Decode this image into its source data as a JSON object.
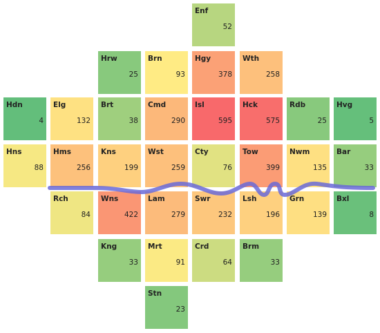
{
  "chart_data": {
    "type": "heatmap",
    "grid": "London borough tile grid",
    "color_scale": {
      "low": "#63be7b",
      "mid": "#ffeb84",
      "high": "#f8696b"
    },
    "river_color": "#6a6ad8",
    "tiles": [
      {
        "label": "Enf",
        "value": 52,
        "row": 0,
        "col": 4
      },
      {
        "label": "Hrw",
        "value": 25,
        "row": 1,
        "col": 2
      },
      {
        "label": "Brn",
        "value": 93,
        "row": 1,
        "col": 3
      },
      {
        "label": "Hgy",
        "value": 378,
        "row": 1,
        "col": 4
      },
      {
        "label": "Wth",
        "value": 258,
        "row": 1,
        "col": 5
      },
      {
        "label": "Hdn",
        "value": 4,
        "row": 2,
        "col": 0
      },
      {
        "label": "Elg",
        "value": 132,
        "row": 2,
        "col": 1
      },
      {
        "label": "Brt",
        "value": 38,
        "row": 2,
        "col": 2
      },
      {
        "label": "Cmd",
        "value": 290,
        "row": 2,
        "col": 3
      },
      {
        "label": "Isl",
        "value": 595,
        "row": 2,
        "col": 4
      },
      {
        "label": "Hck",
        "value": 575,
        "row": 2,
        "col": 5
      },
      {
        "label": "Rdb",
        "value": 25,
        "row": 2,
        "col": 6
      },
      {
        "label": "Hvg",
        "value": 5,
        "row": 2,
        "col": 7
      },
      {
        "label": "Hns",
        "value": 88,
        "row": 3,
        "col": 0
      },
      {
        "label": "Hms",
        "value": 256,
        "row": 3,
        "col": 1
      },
      {
        "label": "Kns",
        "value": 199,
        "row": 3,
        "col": 2
      },
      {
        "label": "Wst",
        "value": 259,
        "row": 3,
        "col": 3
      },
      {
        "label": "Cty",
        "value": 76,
        "row": 3,
        "col": 4
      },
      {
        "label": "Tow",
        "value": 399,
        "row": 3,
        "col": 5
      },
      {
        "label": "Nwm",
        "value": 135,
        "row": 3,
        "col": 6
      },
      {
        "label": "Bar",
        "value": 33,
        "row": 3,
        "col": 7
      },
      {
        "label": "Rch",
        "value": 84,
        "row": 4,
        "col": 1
      },
      {
        "label": "Wns",
        "value": 422,
        "row": 4,
        "col": 2
      },
      {
        "label": "Lam",
        "value": 279,
        "row": 4,
        "col": 3
      },
      {
        "label": "Swr",
        "value": 232,
        "row": 4,
        "col": 4
      },
      {
        "label": "Lsh",
        "value": 196,
        "row": 4,
        "col": 5
      },
      {
        "label": "Grn",
        "value": 139,
        "row": 4,
        "col": 6
      },
      {
        "label": "Bxl",
        "value": 8,
        "row": 4,
        "col": 7
      },
      {
        "label": "Kng",
        "value": 33,
        "row": 5,
        "col": 2
      },
      {
        "label": "Mrt",
        "value": 91,
        "row": 5,
        "col": 3
      },
      {
        "label": "Crd",
        "value": 64,
        "row": 5,
        "col": 4
      },
      {
        "label": "Brm",
        "value": 33,
        "row": 5,
        "col": 5
      },
      {
        "label": "Stn",
        "value": 23,
        "row": 6,
        "col": 3
      }
    ]
  }
}
